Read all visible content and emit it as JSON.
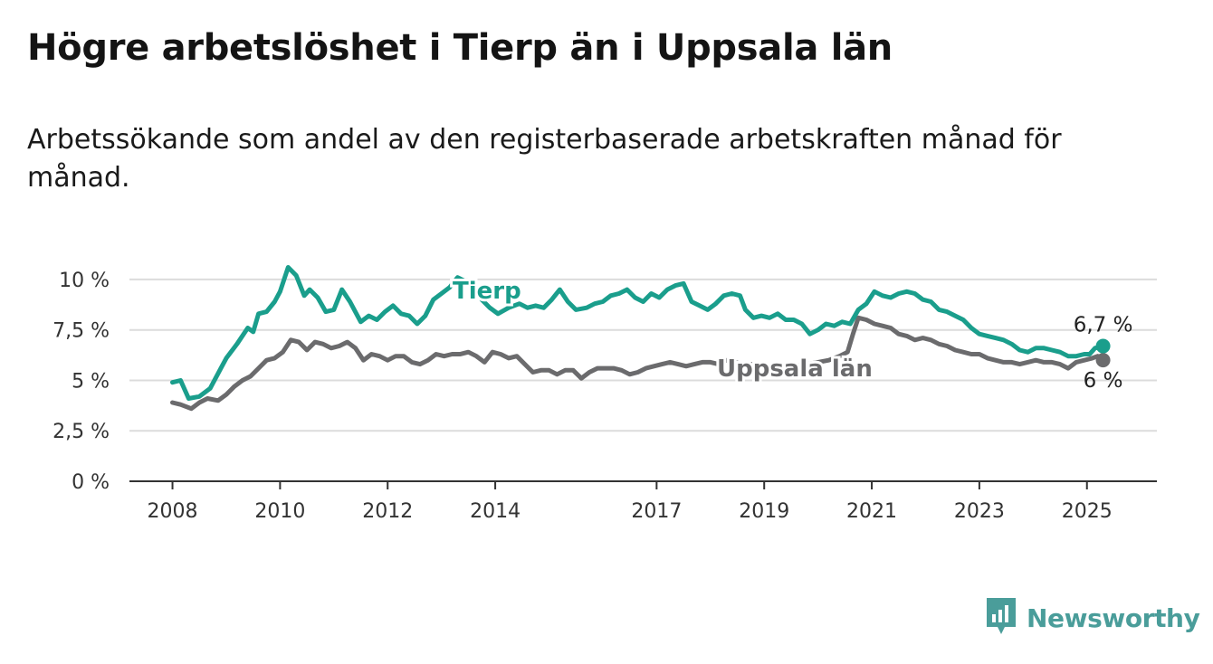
{
  "header": {
    "title": "Högre arbetslöshet i Tierp än i Uppsala län",
    "subtitle": "Arbetssökande som andel av den registerbaserade arbetskraften månad för månad."
  },
  "brand": {
    "name": "Newsworthy",
    "icon": "newsworthy-logo-icon",
    "color": "#4a9d9a"
  },
  "chart_data": {
    "type": "line",
    "title": "Högre arbetslöshet i Tierp än i Uppsala län",
    "subtitle": "Arbetssökande som andel av den registerbaserade arbetskraften månad för månad.",
    "xlabel": "",
    "ylabel": "",
    "ylim": [
      0,
      10.4
    ],
    "xlim": [
      2007.2,
      2026.3
    ],
    "yticks": [
      0,
      2.5,
      5,
      7.5,
      10
    ],
    "ytick_labels": [
      "0 %",
      "2,5 %",
      "5 %",
      "7,5 %",
      "10 %"
    ],
    "xticks": [
      2008,
      2010,
      2012,
      2014,
      2017,
      2019,
      2021,
      2023,
      2025
    ],
    "xtick_labels": [
      "2008",
      "2010",
      "2012",
      "2014",
      "2017",
      "2019",
      "2021",
      "2023",
      "2025"
    ],
    "grid": "horizontal",
    "series": [
      {
        "name": "Tierp",
        "color": "#1a9e8c",
        "end_label": "6,7 %",
        "points": [
          [
            2008.0,
            4.9
          ],
          [
            2008.15,
            5.0
          ],
          [
            2008.3,
            4.1
          ],
          [
            2008.5,
            4.2
          ],
          [
            2008.7,
            4.6
          ],
          [
            2008.9,
            5.6
          ],
          [
            2009.0,
            6.1
          ],
          [
            2009.2,
            6.8
          ],
          [
            2009.4,
            7.6
          ],
          [
            2009.5,
            7.4
          ],
          [
            2009.6,
            8.3
          ],
          [
            2009.75,
            8.4
          ],
          [
            2009.9,
            8.9
          ],
          [
            2010.0,
            9.4
          ],
          [
            2010.15,
            10.6
          ],
          [
            2010.3,
            10.2
          ],
          [
            2010.45,
            9.2
          ],
          [
            2010.55,
            9.5
          ],
          [
            2010.7,
            9.1
          ],
          [
            2010.85,
            8.4
          ],
          [
            2011.0,
            8.5
          ],
          [
            2011.15,
            9.5
          ],
          [
            2011.3,
            8.9
          ],
          [
            2011.5,
            7.9
          ],
          [
            2011.65,
            8.2
          ],
          [
            2011.8,
            8.0
          ],
          [
            2011.95,
            8.4
          ],
          [
            2012.1,
            8.7
          ],
          [
            2012.25,
            8.3
          ],
          [
            2012.4,
            8.2
          ],
          [
            2012.55,
            7.8
          ],
          [
            2012.7,
            8.2
          ],
          [
            2012.85,
            9.0
          ],
          [
            2013.0,
            9.3
          ],
          [
            2013.15,
            9.6
          ],
          [
            2013.3,
            10.1
          ],
          [
            2013.45,
            9.9
          ],
          [
            2013.6,
            9.6
          ],
          [
            2013.75,
            9.0
          ],
          [
            2013.9,
            8.6
          ],
          [
            2014.05,
            8.3
          ],
          [
            2014.25,
            8.6
          ],
          [
            2014.45,
            8.8
          ],
          [
            2014.6,
            8.6
          ],
          [
            2014.75,
            8.7
          ],
          [
            2014.9,
            8.6
          ],
          [
            2015.05,
            9.0
          ],
          [
            2015.2,
            9.5
          ],
          [
            2015.35,
            8.9
          ],
          [
            2015.5,
            8.5
          ],
          [
            2015.7,
            8.6
          ],
          [
            2015.85,
            8.8
          ],
          [
            2016.0,
            8.9
          ],
          [
            2016.15,
            9.2
          ],
          [
            2016.3,
            9.3
          ],
          [
            2016.45,
            9.5
          ],
          [
            2016.6,
            9.1
          ],
          [
            2016.75,
            8.9
          ],
          [
            2016.9,
            9.3
          ],
          [
            2017.05,
            9.1
          ],
          [
            2017.2,
            9.5
          ],
          [
            2017.35,
            9.7
          ],
          [
            2017.5,
            9.8
          ],
          [
            2017.65,
            8.9
          ],
          [
            2017.8,
            8.7
          ],
          [
            2017.95,
            8.5
          ],
          [
            2018.1,
            8.8
          ],
          [
            2018.25,
            9.2
          ],
          [
            2018.4,
            9.3
          ],
          [
            2018.55,
            9.2
          ],
          [
            2018.65,
            8.5
          ],
          [
            2018.8,
            8.1
          ],
          [
            2018.95,
            8.2
          ],
          [
            2019.1,
            8.1
          ],
          [
            2019.25,
            8.3
          ],
          [
            2019.4,
            8.0
          ],
          [
            2019.55,
            8.0
          ],
          [
            2019.7,
            7.8
          ],
          [
            2019.85,
            7.3
          ],
          [
            2020.0,
            7.5
          ],
          [
            2020.15,
            7.8
          ],
          [
            2020.3,
            7.7
          ],
          [
            2020.45,
            7.9
          ],
          [
            2020.6,
            7.8
          ],
          [
            2020.75,
            8.5
          ],
          [
            2020.9,
            8.8
          ],
          [
            2021.05,
            9.4
          ],
          [
            2021.2,
            9.2
          ],
          [
            2021.35,
            9.1
          ],
          [
            2021.5,
            9.3
          ],
          [
            2021.65,
            9.4
          ],
          [
            2021.8,
            9.3
          ],
          [
            2021.95,
            9.0
          ],
          [
            2022.1,
            8.9
          ],
          [
            2022.25,
            8.5
          ],
          [
            2022.4,
            8.4
          ],
          [
            2022.55,
            8.2
          ],
          [
            2022.7,
            8.0
          ],
          [
            2022.85,
            7.6
          ],
          [
            2023.0,
            7.3
          ],
          [
            2023.15,
            7.2
          ],
          [
            2023.3,
            7.1
          ],
          [
            2023.45,
            7.0
          ],
          [
            2023.6,
            6.8
          ],
          [
            2023.75,
            6.5
          ],
          [
            2023.9,
            6.4
          ],
          [
            2024.05,
            6.6
          ],
          [
            2024.2,
            6.6
          ],
          [
            2024.35,
            6.5
          ],
          [
            2024.5,
            6.4
          ],
          [
            2024.65,
            6.2
          ],
          [
            2024.8,
            6.2
          ],
          [
            2024.95,
            6.3
          ],
          [
            2025.05,
            6.3
          ],
          [
            2025.15,
            6.6
          ],
          [
            2025.3,
            6.7
          ]
        ]
      },
      {
        "name": "Uppsala län",
        "color": "#6b6b6d",
        "end_label": "6 %",
        "points": [
          [
            2008.0,
            3.9
          ],
          [
            2008.15,
            3.8
          ],
          [
            2008.35,
            3.6
          ],
          [
            2008.5,
            3.9
          ],
          [
            2008.65,
            4.1
          ],
          [
            2008.85,
            4.0
          ],
          [
            2009.0,
            4.3
          ],
          [
            2009.15,
            4.7
          ],
          [
            2009.3,
            5.0
          ],
          [
            2009.45,
            5.2
          ],
          [
            2009.6,
            5.6
          ],
          [
            2009.75,
            6.0
          ],
          [
            2009.9,
            6.1
          ],
          [
            2010.05,
            6.4
          ],
          [
            2010.2,
            7.0
          ],
          [
            2010.35,
            6.9
          ],
          [
            2010.5,
            6.5
          ],
          [
            2010.65,
            6.9
          ],
          [
            2010.8,
            6.8
          ],
          [
            2010.95,
            6.6
          ],
          [
            2011.1,
            6.7
          ],
          [
            2011.25,
            6.9
          ],
          [
            2011.4,
            6.6
          ],
          [
            2011.55,
            6.0
          ],
          [
            2011.7,
            6.3
          ],
          [
            2011.85,
            6.2
          ],
          [
            2012.0,
            6.0
          ],
          [
            2012.15,
            6.2
          ],
          [
            2012.3,
            6.2
          ],
          [
            2012.45,
            5.9
          ],
          [
            2012.6,
            5.8
          ],
          [
            2012.75,
            6.0
          ],
          [
            2012.9,
            6.3
          ],
          [
            2013.05,
            6.2
          ],
          [
            2013.2,
            6.3
          ],
          [
            2013.35,
            6.3
          ],
          [
            2013.5,
            6.4
          ],
          [
            2013.65,
            6.2
          ],
          [
            2013.8,
            5.9
          ],
          [
            2013.95,
            6.4
          ],
          [
            2014.1,
            6.3
          ],
          [
            2014.25,
            6.1
          ],
          [
            2014.4,
            6.2
          ],
          [
            2014.55,
            5.8
          ],
          [
            2014.7,
            5.4
          ],
          [
            2014.85,
            5.5
          ],
          [
            2015.0,
            5.5
          ],
          [
            2015.15,
            5.3
          ],
          [
            2015.3,
            5.5
          ],
          [
            2015.45,
            5.5
          ],
          [
            2015.6,
            5.1
          ],
          [
            2015.75,
            5.4
          ],
          [
            2015.9,
            5.6
          ],
          [
            2016.05,
            5.6
          ],
          [
            2016.2,
            5.6
          ],
          [
            2016.35,
            5.5
          ],
          [
            2016.5,
            5.3
          ],
          [
            2016.65,
            5.4
          ],
          [
            2016.8,
            5.6
          ],
          [
            2016.95,
            5.7
          ],
          [
            2017.1,
            5.8
          ],
          [
            2017.25,
            5.9
          ],
          [
            2017.4,
            5.8
          ],
          [
            2017.55,
            5.7
          ],
          [
            2017.7,
            5.8
          ],
          [
            2017.85,
            5.9
          ],
          [
            2018.0,
            5.9
          ],
          [
            2018.15,
            5.8
          ],
          [
            2018.3,
            6.0
          ],
          [
            2018.45,
            5.9
          ],
          [
            2018.6,
            5.8
          ],
          [
            2018.8,
            5.8
          ],
          [
            2019.0,
            5.7
          ],
          [
            2019.2,
            5.7
          ],
          [
            2019.4,
            5.8
          ],
          [
            2019.6,
            5.7
          ],
          [
            2019.8,
            5.8
          ],
          [
            2020.0,
            5.9
          ],
          [
            2020.2,
            6.0
          ],
          [
            2020.4,
            6.2
          ],
          [
            2020.55,
            6.4
          ],
          [
            2020.65,
            7.3
          ],
          [
            2020.75,
            8.1
          ],
          [
            2020.9,
            8.0
          ],
          [
            2021.05,
            7.8
          ],
          [
            2021.2,
            7.7
          ],
          [
            2021.35,
            7.6
          ],
          [
            2021.5,
            7.3
          ],
          [
            2021.65,
            7.2
          ],
          [
            2021.8,
            7.0
          ],
          [
            2021.95,
            7.1
          ],
          [
            2022.1,
            7.0
          ],
          [
            2022.25,
            6.8
          ],
          [
            2022.4,
            6.7
          ],
          [
            2022.55,
            6.5
          ],
          [
            2022.7,
            6.4
          ],
          [
            2022.85,
            6.3
          ],
          [
            2023.0,
            6.3
          ],
          [
            2023.15,
            6.1
          ],
          [
            2023.3,
            6.0
          ],
          [
            2023.45,
            5.9
          ],
          [
            2023.6,
            5.9
          ],
          [
            2023.75,
            5.8
          ],
          [
            2023.9,
            5.9
          ],
          [
            2024.05,
            6.0
          ],
          [
            2024.2,
            5.9
          ],
          [
            2024.35,
            5.9
          ],
          [
            2024.5,
            5.8
          ],
          [
            2024.65,
            5.6
          ],
          [
            2024.8,
            5.9
          ],
          [
            2024.95,
            6.0
          ],
          [
            2025.1,
            6.1
          ],
          [
            2025.2,
            6.2
          ],
          [
            2025.3,
            6.0
          ]
        ]
      }
    ]
  }
}
